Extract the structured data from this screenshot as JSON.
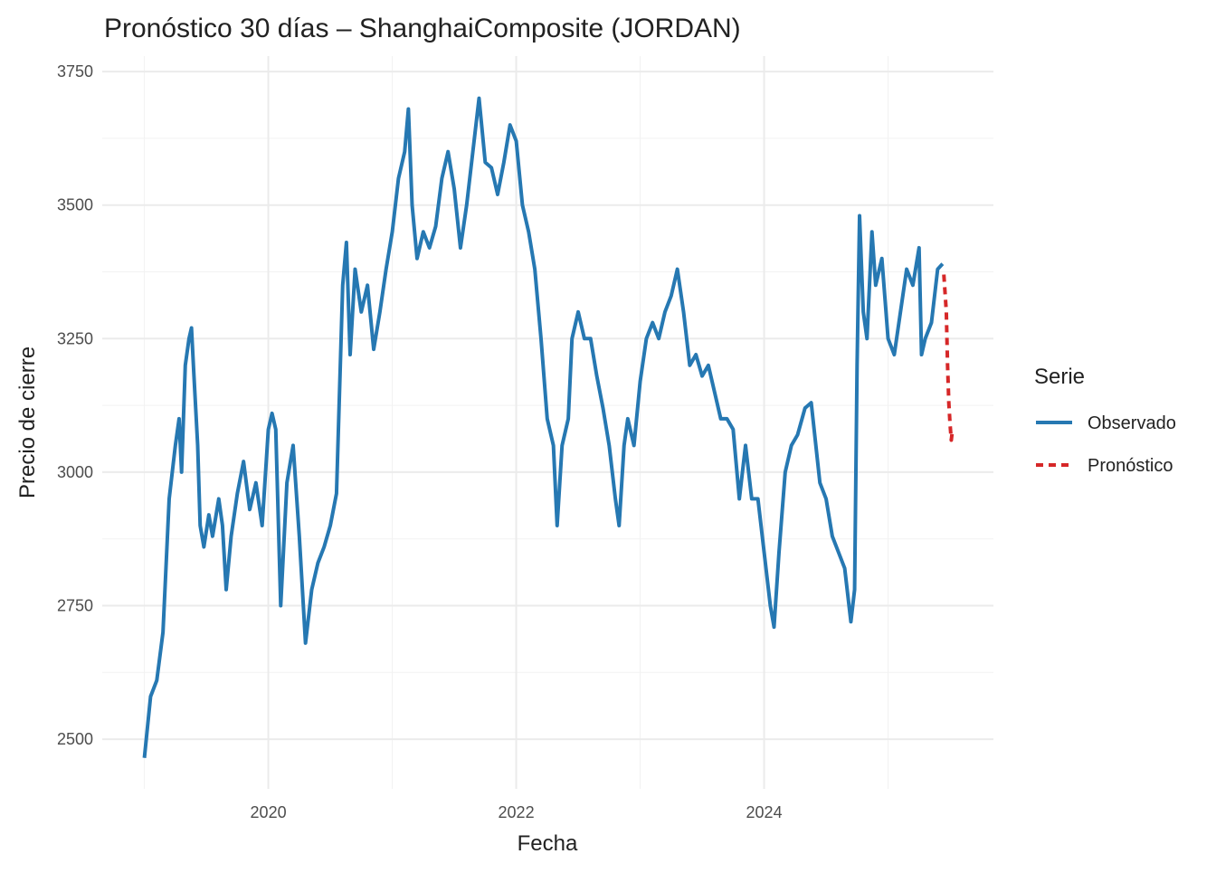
{
  "chart_data": {
    "type": "line",
    "title": "Pronóstico 30 días – ShanghaiComposite (JORDAN)",
    "x_label": "Fecha",
    "y_label": "Precio de cierre",
    "legend_title": "Serie",
    "legend": "right",
    "grid": true,
    "xlim": [
      2018.66,
      2025.85
    ],
    "xticks": [
      2020,
      2022,
      2024
    ],
    "xminorticks": [
      2019,
      2021,
      2023,
      2025
    ],
    "ylim": [
      2407,
      3779
    ],
    "yticks": [
      2500,
      2750,
      3000,
      3250,
      3500,
      3750
    ],
    "yminorticks": [
      2625,
      2875,
      3125,
      3375,
      3625
    ],
    "series": [
      {
        "name": "Observado",
        "color": "#2678b2",
        "linestyle": "solid",
        "x": [
          2019.0,
          2019.05,
          2019.1,
          2019.15,
          2019.2,
          2019.25,
          2019.28,
          2019.3,
          2019.33,
          2019.36,
          2019.38,
          2019.4,
          2019.43,
          2019.45,
          2019.48,
          2019.52,
          2019.55,
          2019.6,
          2019.63,
          2019.66,
          2019.7,
          2019.75,
          2019.8,
          2019.85,
          2019.9,
          2019.95,
          2020.0,
          2020.03,
          2020.06,
          2020.1,
          2020.15,
          2020.2,
          2020.25,
          2020.3,
          2020.35,
          2020.4,
          2020.45,
          2020.5,
          2020.55,
          2020.6,
          2020.63,
          2020.66,
          2020.7,
          2020.75,
          2020.8,
          2020.85,
          2020.9,
          2020.95,
          2021.0,
          2021.05,
          2021.1,
          2021.13,
          2021.16,
          2021.2,
          2021.25,
          2021.3,
          2021.35,
          2021.4,
          2021.45,
          2021.5,
          2021.55,
          2021.6,
          2021.65,
          2021.7,
          2021.75,
          2021.8,
          2021.85,
          2021.9,
          2021.95,
          2022.0,
          2022.05,
          2022.1,
          2022.15,
          2022.2,
          2022.25,
          2022.3,
          2022.33,
          2022.37,
          2022.42,
          2022.45,
          2022.5,
          2022.55,
          2022.6,
          2022.65,
          2022.7,
          2022.75,
          2022.8,
          2022.83,
          2022.87,
          2022.9,
          2022.95,
          2023.0,
          2023.05,
          2023.1,
          2023.15,
          2023.2,
          2023.25,
          2023.3,
          2023.35,
          2023.4,
          2023.45,
          2023.5,
          2023.55,
          2023.6,
          2023.65,
          2023.7,
          2023.75,
          2023.8,
          2023.85,
          2023.9,
          2023.95,
          2024.0,
          2024.05,
          2024.08,
          2024.12,
          2024.17,
          2024.22,
          2024.27,
          2024.33,
          2024.38,
          2024.45,
          2024.5,
          2024.55,
          2024.6,
          2024.65,
          2024.7,
          2024.73,
          2024.75,
          2024.77,
          2024.8,
          2024.83,
          2024.87,
          2024.9,
          2024.95,
          2025.0,
          2025.05,
          2025.1,
          2025.15,
          2025.2,
          2025.25,
          2025.27,
          2025.3,
          2025.35,
          2025.4,
          2025.44
        ],
        "values": [
          2465,
          2580,
          2610,
          2700,
          2950,
          3050,
          3100,
          3000,
          3200,
          3250,
          3270,
          3180,
          3050,
          2900,
          2860,
          2920,
          2880,
          2950,
          2900,
          2780,
          2880,
          2960,
          3020,
          2930,
          2980,
          2900,
          3080,
          3110,
          3080,
          2750,
          2980,
          3050,
          2880,
          2680,
          2780,
          2830,
          2860,
          2900,
          2960,
          3350,
          3430,
          3220,
          3380,
          3300,
          3350,
          3230,
          3300,
          3380,
          3450,
          3550,
          3600,
          3680,
          3500,
          3400,
          3450,
          3420,
          3460,
          3550,
          3600,
          3530,
          3420,
          3500,
          3600,
          3700,
          3580,
          3570,
          3520,
          3580,
          3650,
          3620,
          3500,
          3450,
          3380,
          3250,
          3100,
          3050,
          2900,
          3050,
          3100,
          3250,
          3300,
          3250,
          3250,
          3180,
          3120,
          3050,
          2950,
          2900,
          3050,
          3100,
          3050,
          3170,
          3250,
          3280,
          3250,
          3300,
          3330,
          3380,
          3300,
          3200,
          3220,
          3180,
          3200,
          3150,
          3100,
          3100,
          3080,
          2950,
          3050,
          2950,
          2950,
          2850,
          2750,
          2710,
          2850,
          3000,
          3050,
          3070,
          3120,
          3130,
          2980,
          2950,
          2880,
          2850,
          2820,
          2720,
          2780,
          3200,
          3480,
          3300,
          3250,
          3450,
          3350,
          3400,
          3250,
          3220,
          3300,
          3380,
          3350,
          3420,
          3220,
          3250,
          3280,
          3380,
          3390
        ]
      },
      {
        "name": "Pronóstico",
        "color": "#d62728",
        "linestyle": "dashed",
        "x": [
          2025.45,
          2025.47,
          2025.48,
          2025.49,
          2025.5,
          2025.51,
          2025.52
        ],
        "values": [
          3370,
          3300,
          3200,
          3130,
          3090,
          3060,
          3080
        ]
      }
    ]
  }
}
